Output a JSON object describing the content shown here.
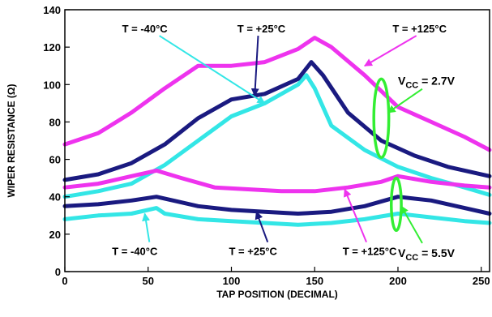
{
  "chart_data": {
    "type": "line",
    "title": "",
    "xlabel": "TAP POSITION (DECIMAL)",
    "ylabel": "WIPER RESISTANCE (Ω)",
    "xlim": [
      0,
      255
    ],
    "ylim": [
      0,
      140
    ],
    "x_ticks": [
      0,
      50,
      100,
      150,
      200,
      250
    ],
    "y_ticks": [
      0,
      20,
      40,
      60,
      80,
      100,
      120,
      140
    ],
    "grid": false,
    "series": [
      {
        "name": "T = -40°C, VCC = 2.7V",
        "color": "#33e6e6",
        "x": [
          0,
          20,
          40,
          60,
          80,
          100,
          120,
          140,
          145,
          150,
          160,
          180,
          200,
          220,
          240,
          255
        ],
        "y": [
          40,
          43,
          47,
          57,
          70,
          83,
          90,
          100,
          105,
          98,
          78,
          65,
          56,
          50,
          45,
          41
        ]
      },
      {
        "name": "T = +25°C, VCC = 2.7V",
        "color": "#1a1a80",
        "x": [
          0,
          20,
          40,
          60,
          80,
          100,
          120,
          140,
          148,
          155,
          170,
          190,
          210,
          230,
          255
        ],
        "y": [
          49,
          52,
          58,
          68,
          82,
          92,
          95,
          103,
          112,
          105,
          85,
          70,
          62,
          56,
          51
        ]
      },
      {
        "name": "T = +125°C, VCC = 2.7V",
        "color": "#ee33ee",
        "x": [
          0,
          20,
          40,
          60,
          80,
          100,
          120,
          140,
          150,
          160,
          180,
          200,
          220,
          240,
          255
        ],
        "y": [
          68,
          74,
          85,
          98,
          110,
          110,
          112,
          119,
          125,
          120,
          105,
          88,
          80,
          72,
          65
        ]
      },
      {
        "name": "T = -40°C, VCC = 5.5V",
        "color": "#33e6e6",
        "x": [
          0,
          20,
          40,
          55,
          60,
          80,
          100,
          120,
          140,
          160,
          180,
          200,
          220,
          240,
          255
        ],
        "y": [
          28,
          30,
          31,
          34,
          31,
          28,
          27,
          26,
          25,
          26,
          28,
          31,
          29,
          27,
          26
        ]
      },
      {
        "name": "T = +25°C, VCC = 5.5V",
        "color": "#1a1a80",
        "x": [
          0,
          20,
          40,
          55,
          65,
          80,
          100,
          120,
          140,
          160,
          180,
          200,
          220,
          240,
          255
        ],
        "y": [
          35,
          36,
          38,
          40,
          38,
          35,
          33,
          32,
          31,
          32,
          35,
          40,
          38,
          34,
          31
        ]
      },
      {
        "name": "T = +125°C, VCC = 5.5V",
        "color": "#ee33ee",
        "x": [
          0,
          20,
          40,
          55,
          70,
          90,
          110,
          130,
          150,
          170,
          190,
          200,
          220,
          240,
          255
        ],
        "y": [
          45,
          47,
          51,
          54,
          50,
          45,
          44,
          43,
          43,
          45,
          48,
          51,
          48,
          46,
          45
        ]
      }
    ],
    "annotations": [
      {
        "text": "T = -40°C",
        "x": 48,
        "y": 130,
        "target_x": 120,
        "target_y": 90,
        "color": "#33e6e6"
      },
      {
        "text": "T = +25°C",
        "x": 118,
        "y": 130,
        "target_x": 114,
        "target_y": 94,
        "color": "#1a1a80"
      },
      {
        "text": "T = +125°C",
        "x": 213,
        "y": 130,
        "target_x": 180,
        "target_y": 110,
        "color": "#ee33ee"
      },
      {
        "text": "T = -40°C",
        "x": 42,
        "y": 11,
        "target_x": 48,
        "target_y": 31,
        "color": "#33e6e6"
      },
      {
        "text": "T = +25°C",
        "x": 113,
        "y": 11,
        "target_x": 115,
        "target_y": 32,
        "color": "#1a1a80"
      },
      {
        "text": "T = +125°C",
        "x": 183,
        "y": 11,
        "target_x": 168,
        "target_y": 44,
        "color": "#ee33ee"
      }
    ],
    "vcc_labels": [
      {
        "label": "V",
        "subscript": "CC",
        "value": " = 2.7V",
        "x": 200,
        "y": 102,
        "target_x": 192,
        "target_y": 85
      },
      {
        "label": "V",
        "subscript": "CC",
        "value": " = 5.5V",
        "x": 200,
        "y": 10,
        "target_x": 200,
        "target_y": 35
      }
    ],
    "highlight_ellipses": [
      {
        "cx": 190,
        "cy": 82,
        "rx": 4.5,
        "ry": 21,
        "color": "#33ee33"
      },
      {
        "cx": 199,
        "cy": 36,
        "rx": 3,
        "ry": 14,
        "color": "#33ee33"
      }
    ]
  }
}
